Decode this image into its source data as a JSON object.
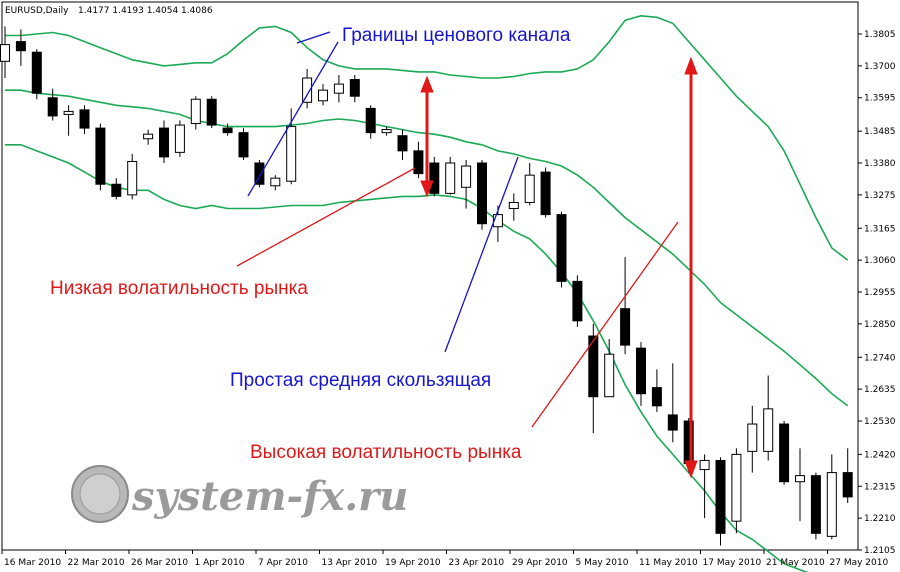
{
  "header": {
    "symbol": "EURUSD,Daily",
    "ohlc": "1.4177 1.4193 1.4054 1.4086"
  },
  "watermark": {
    "text": "system-fx.ru"
  },
  "annotations": {
    "channel_bounds": "Границы ценового канала",
    "low_volatility": "Низкая волатильность рынка",
    "sma": "Простая средняя скользящая",
    "high_volatility": "Высокая волатильность рынка"
  },
  "colors": {
    "bands": "#1aaa55",
    "annotation_blue": "#1515d0",
    "annotation_red": "#e01818",
    "arrow": "#e01818",
    "bull_candle": "#ffffff",
    "bear_candle": "#000000"
  },
  "chart_data": {
    "type": "candlestick",
    "indicator": "Bollinger Bands",
    "ylim": [
      1.2105,
      1.391
    ],
    "y_ticks": [
      "1.3805",
      "1.3700",
      "1.3595",
      "1.3485",
      "1.3380",
      "1.3275",
      "1.3165",
      "1.3060",
      "1.2955",
      "1.2850",
      "1.2740",
      "1.2635",
      "1.2530",
      "1.2420",
      "1.2315",
      "1.2210",
      "1.2105"
    ],
    "x_ticks": [
      "16 Mar 2010",
      "22 Mar 2010",
      "26 Mar 2010",
      "1 Apr 2010",
      "7 Apr 2010",
      "13 Apr 2010",
      "19 Apr 2010",
      "23 Apr 2010",
      "29 Apr 2010",
      "5 May 2010",
      "11 May 2010",
      "17 May 2010",
      "21 May 2010",
      "27 May 2010"
    ],
    "candles": [
      {
        "o": 1.3715,
        "h": 1.383,
        "l": 1.366,
        "c": 1.377
      },
      {
        "o": 1.378,
        "h": 1.382,
        "l": 1.37,
        "c": 1.375
      },
      {
        "o": 1.3745,
        "h": 1.3755,
        "l": 1.359,
        "c": 1.361
      },
      {
        "o": 1.3595,
        "h": 1.3625,
        "l": 1.352,
        "c": 1.3535
      },
      {
        "o": 1.354,
        "h": 1.357,
        "l": 1.347,
        "c": 1.355
      },
      {
        "o": 1.3555,
        "h": 1.357,
        "l": 1.3475,
        "c": 1.3495
      },
      {
        "o": 1.3495,
        "h": 1.351,
        "l": 1.329,
        "c": 1.331
      },
      {
        "o": 1.331,
        "h": 1.333,
        "l": 1.326,
        "c": 1.327
      },
      {
        "o": 1.3275,
        "h": 1.341,
        "l": 1.326,
        "c": 1.3385
      },
      {
        "o": 1.346,
        "h": 1.349,
        "l": 1.344,
        "c": 1.3475
      },
      {
        "o": 1.3495,
        "h": 1.352,
        "l": 1.338,
        "c": 1.34
      },
      {
        "o": 1.3415,
        "h": 1.352,
        "l": 1.34,
        "c": 1.3505
      },
      {
        "o": 1.351,
        "h": 1.36,
        "l": 1.349,
        "c": 1.359
      },
      {
        "o": 1.359,
        "h": 1.36,
        "l": 1.3495,
        "c": 1.3505
      },
      {
        "o": 1.3495,
        "h": 1.351,
        "l": 1.347,
        "c": 1.348
      },
      {
        "o": 1.348,
        "h": 1.3495,
        "l": 1.339,
        "c": 1.34
      },
      {
        "o": 1.338,
        "h": 1.339,
        "l": 1.33,
        "c": 1.331
      },
      {
        "o": 1.3305,
        "h": 1.334,
        "l": 1.329,
        "c": 1.333
      },
      {
        "o": 1.332,
        "h": 1.356,
        "l": 1.331,
        "c": 1.35
      },
      {
        "o": 1.358,
        "h": 1.369,
        "l": 1.356,
        "c": 1.366
      },
      {
        "o": 1.3585,
        "h": 1.364,
        "l": 1.357,
        "c": 1.362
      },
      {
        "o": 1.361,
        "h": 1.367,
        "l": 1.358,
        "c": 1.364
      },
      {
        "o": 1.3655,
        "h": 1.367,
        "l": 1.358,
        "c": 1.36
      },
      {
        "o": 1.356,
        "h": 1.357,
        "l": 1.346,
        "c": 1.348
      },
      {
        "o": 1.348,
        "h": 1.35,
        "l": 1.347,
        "c": 1.349
      },
      {
        "o": 1.347,
        "h": 1.349,
        "l": 1.339,
        "c": 1.342
      },
      {
        "o": 1.342,
        "h": 1.345,
        "l": 1.333,
        "c": 1.3345
      },
      {
        "o": 1.338,
        "h": 1.34,
        "l": 1.327,
        "c": 1.328
      },
      {
        "o": 1.328,
        "h": 1.34,
        "l": 1.3275,
        "c": 1.338
      },
      {
        "o": 1.33,
        "h": 1.339,
        "l": 1.323,
        "c": 1.337
      },
      {
        "o": 1.338,
        "h": 1.339,
        "l": 1.316,
        "c": 1.318
      },
      {
        "o": 1.317,
        "h": 1.324,
        "l": 1.312,
        "c": 1.321
      },
      {
        "o": 1.323,
        "h": 1.328,
        "l": 1.319,
        "c": 1.325
      },
      {
        "o": 1.325,
        "h": 1.338,
        "l": 1.324,
        "c": 1.334
      },
      {
        "o": 1.335,
        "h": 1.3365,
        "l": 1.32,
        "c": 1.321
      },
      {
        "o": 1.321,
        "h": 1.322,
        "l": 1.297,
        "c": 1.299
      },
      {
        "o": 1.299,
        "h": 1.301,
        "l": 1.284,
        "c": 1.286
      },
      {
        "o": 1.281,
        "h": 1.285,
        "l": 1.249,
        "c": 1.261
      },
      {
        "o": 1.261,
        "h": 1.28,
        "l": 1.261,
        "c": 1.275
      },
      {
        "o": 1.29,
        "h": 1.307,
        "l": 1.275,
        "c": 1.278
      },
      {
        "o": 1.277,
        "h": 1.279,
        "l": 1.258,
        "c": 1.262
      },
      {
        "o": 1.264,
        "h": 1.27,
        "l": 1.256,
        "c": 1.258
      },
      {
        "o": 1.255,
        "h": 1.272,
        "l": 1.246,
        "c": 1.25
      },
      {
        "o": 1.253,
        "h": 1.254,
        "l": 1.236,
        "c": 1.239
      },
      {
        "o": 1.237,
        "h": 1.242,
        "l": 1.221,
        "c": 1.24
      },
      {
        "o": 1.24,
        "h": 1.241,
        "l": 1.212,
        "c": 1.216
      },
      {
        "o": 1.22,
        "h": 1.244,
        "l": 1.216,
        "c": 1.242
      },
      {
        "o": 1.243,
        "h": 1.258,
        "l": 1.236,
        "c": 1.252
      },
      {
        "o": 1.243,
        "h": 1.268,
        "l": 1.24,
        "c": 1.257
      },
      {
        "o": 1.252,
        "h": 1.253,
        "l": 1.232,
        "c": 1.233
      },
      {
        "o": 1.233,
        "h": 1.244,
        "l": 1.22,
        "c": 1.235
      },
      {
        "o": 1.235,
        "h": 1.236,
        "l": 1.214,
        "c": 1.216
      },
      {
        "o": 1.215,
        "h": 1.242,
        "l": 1.214,
        "c": 1.236
      },
      {
        "o": 1.236,
        "h": 1.244,
        "l": 1.226,
        "c": 1.228
      }
    ],
    "upper_band": [
      1.38,
      1.38,
      1.3805,
      1.381,
      1.38,
      1.378,
      1.376,
      1.374,
      1.372,
      1.371,
      1.37,
      1.3705,
      1.371,
      1.371,
      1.374,
      1.3785,
      1.3825,
      1.383,
      1.381,
      1.376,
      1.372,
      1.37,
      1.369,
      1.369,
      1.369,
      1.3685,
      1.368,
      1.368,
      1.367,
      1.3665,
      1.366,
      1.366,
      1.3665,
      1.3675,
      1.368,
      1.368,
      1.369,
      1.372,
      1.378,
      1.385,
      1.3865,
      1.386,
      1.384,
      1.378,
      1.372,
      1.366,
      1.36,
      1.355,
      1.35,
      1.342,
      1.331,
      1.32,
      1.31,
      1.306
    ],
    "middle_band": [
      1.362,
      1.362,
      1.361,
      1.3605,
      1.36,
      1.359,
      1.358,
      1.357,
      1.3565,
      1.356,
      1.355,
      1.354,
      1.352,
      1.351,
      1.35,
      1.35,
      1.35,
      1.35,
      1.3505,
      1.351,
      1.352,
      1.3525,
      1.352,
      1.351,
      1.35,
      1.349,
      1.348,
      1.3475,
      1.3465,
      1.345,
      1.344,
      1.342,
      1.341,
      1.3395,
      1.3385,
      1.337,
      1.334,
      1.33,
      1.325,
      1.32,
      1.316,
      1.312,
      1.308,
      1.303,
      1.298,
      1.292,
      1.288,
      1.284,
      1.28,
      1.276,
      1.2715,
      1.267,
      1.262,
      1.258
    ],
    "lower_band": [
      1.344,
      1.344,
      1.342,
      1.34,
      1.338,
      1.335,
      1.332,
      1.33,
      1.329,
      1.329,
      1.326,
      1.324,
      1.323,
      1.324,
      1.323,
      1.323,
      1.323,
      1.3235,
      1.324,
      1.324,
      1.324,
      1.325,
      1.3255,
      1.326,
      1.3265,
      1.327,
      1.327,
      1.3275,
      1.327,
      1.326,
      1.323,
      1.319,
      1.3155,
      1.313,
      1.308,
      1.302,
      1.295,
      1.286,
      1.276,
      1.265,
      1.256,
      1.248,
      1.242,
      1.236,
      1.23,
      1.223,
      1.217,
      1.214,
      1.21,
      1.206,
      1.204,
      1.202,
      1.2005,
      1.2
    ]
  }
}
